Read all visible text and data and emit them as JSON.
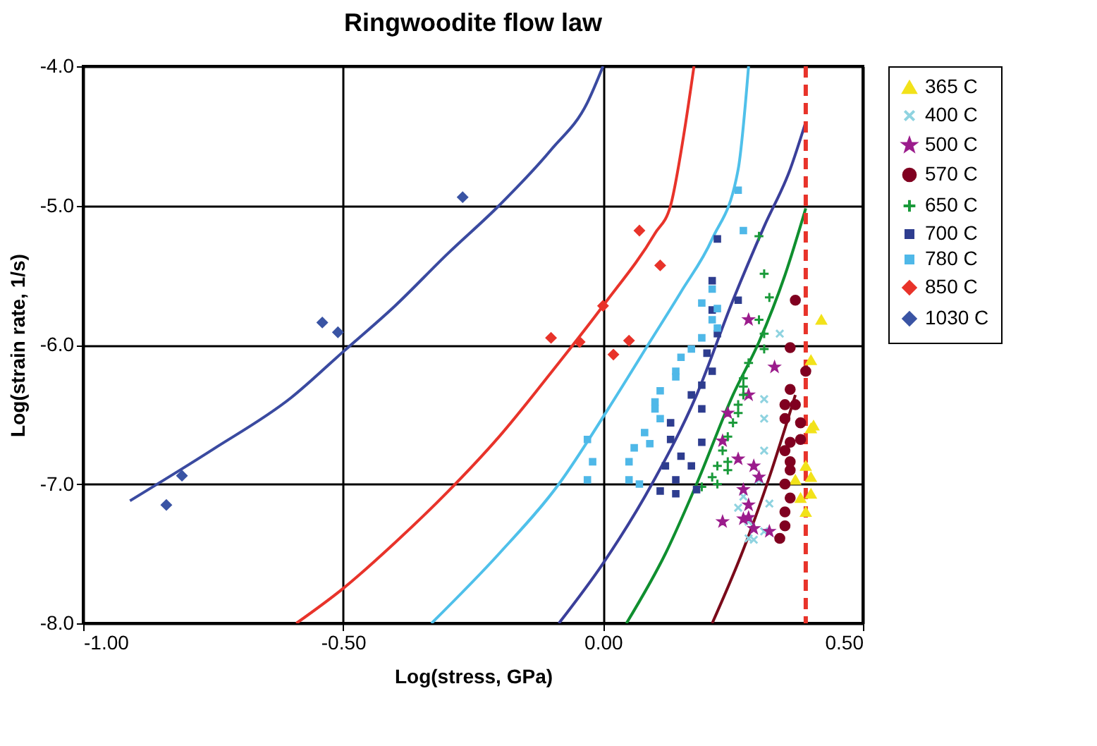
{
  "chart_data": {
    "type": "scatter",
    "title": "Ringwoodite flow law",
    "xlabel": "Log(stress, GPa)",
    "ylabel": "Log(strain rate, 1/s)",
    "xlim": [
      -1,
      0.5
    ],
    "xticks": [
      {
        "value": -1,
        "label": "-1.00"
      },
      {
        "value": -0.5,
        "label": "-0.50"
      },
      {
        "value": 0,
        "label": "0.00"
      },
      {
        "value": 0.5,
        "label": "0.50"
      }
    ],
    "ylim": [
      -8,
      -4
    ],
    "yticks": [
      {
        "value": -8,
        "label": "-8.0"
      },
      {
        "value": -7,
        "label": "-7.0"
      },
      {
        "value": -6,
        "label": "-6.0"
      },
      {
        "value": -5,
        "label": "-5.0"
      },
      {
        "value": -4,
        "label": "-4.0"
      }
    ],
    "grid": true,
    "legend": "right",
    "ref_lines": [
      {
        "axis": "x",
        "value": 0.39,
        "color": "#e8332a",
        "line_style": "dashed"
      }
    ],
    "series": [
      {
        "type": "line",
        "color": "#3a4aa0",
        "x": [
          -0.91,
          -0.75,
          -0.6,
          -0.5,
          -0.4,
          -0.3,
          -0.2,
          -0.1,
          -0.03,
          0.0
        ],
        "values": [
          -7.12,
          -6.75,
          -6.38,
          -6.05,
          -5.72,
          -5.35,
          -5.0,
          -4.6,
          -4.26,
          -4.0
        ]
      },
      {
        "type": "line",
        "color": "#e8332a",
        "x": [
          -0.59,
          -0.5,
          -0.4,
          -0.3,
          -0.2,
          -0.1,
          0.0,
          0.1,
          0.13,
          0.155,
          0.175
        ],
        "values": [
          -8.0,
          -7.75,
          -7.42,
          -7.06,
          -6.66,
          -6.2,
          -5.72,
          -5.2,
          -5.0,
          -4.5,
          -4.0
        ]
      },
      {
        "type": "line",
        "color": "#4fc0ea",
        "x": [
          -0.33,
          -0.2,
          -0.085,
          0.01,
          0.09,
          0.15,
          0.21,
          0.26,
          0.28
        ],
        "values": [
          -8.0,
          -7.5,
          -7.0,
          -6.46,
          -5.98,
          -5.62,
          -5.24,
          -4.74,
          -4.0
        ]
      },
      {
        "type": "line",
        "color": "#3a3f9a",
        "x": [
          -0.085,
          0.0,
          0.094,
          0.18,
          0.25,
          0.31,
          0.36,
          0.39
        ],
        "values": [
          -8.0,
          -7.57,
          -7.0,
          -6.36,
          -5.68,
          -5.15,
          -4.74,
          -4.4
        ]
      },
      {
        "type": "line",
        "color": "#0f8f2f",
        "x": [
          0.045,
          0.12,
          0.18,
          0.25,
          0.3,
          0.35,
          0.39
        ],
        "values": [
          -8.0,
          -7.5,
          -7.0,
          -6.36,
          -5.98,
          -5.5,
          -5.02
        ]
      },
      {
        "type": "line",
        "color": "#7a0a1a",
        "x": [
          0.21,
          0.27,
          0.32,
          0.37
        ],
        "values": [
          -8.0,
          -7.47,
          -6.95,
          -6.36
        ]
      },
      {
        "type": "scatter",
        "name": "365 C",
        "color": "#f2e21a",
        "marker": "triangle",
        "x": [
          0.42,
          0.4,
          0.405,
          0.4,
          0.39,
          0.4,
          0.39,
          0.37,
          0.38,
          0.4
        ],
        "values": [
          -5.82,
          -6.11,
          -6.58,
          -6.6,
          -6.87,
          -7.07,
          -7.2,
          -6.97,
          -7.1,
          -6.95
        ]
      },
      {
        "type": "scatter",
        "name": "400 C",
        "color": "#8fd3e0",
        "marker": "x",
        "x": [
          0.34,
          0.31,
          0.31,
          0.3,
          0.27,
          0.26,
          0.28,
          0.28,
          0.29,
          0.31,
          0.32,
          0.31
        ],
        "values": [
          -5.92,
          -6.53,
          -6.76,
          -6.97,
          -7.09,
          -7.17,
          -7.27,
          -7.39,
          -7.4,
          -7.34,
          -7.14,
          -6.39
        ]
      },
      {
        "type": "scatter",
        "name": "500 C",
        "color": "#9b1c8c",
        "marker": "star",
        "x": [
          0.28,
          0.33,
          0.28,
          0.24,
          0.23,
          0.26,
          0.29,
          0.3,
          0.23,
          0.28,
          0.27,
          0.29,
          0.32,
          0.28,
          0.27
        ],
        "values": [
          -5.82,
          -6.16,
          -6.36,
          -6.49,
          -6.69,
          -6.82,
          -6.87,
          -6.95,
          -7.27,
          -7.15,
          -7.25,
          -7.32,
          -7.34,
          -7.24,
          -7.04
        ]
      },
      {
        "type": "scatter",
        "name": "570 C",
        "color": "#800020",
        "marker": "circle",
        "x": [
          0.37,
          0.36,
          0.39,
          0.36,
          0.35,
          0.35,
          0.38,
          0.38,
          0.35,
          0.36,
          0.35,
          0.36,
          0.35,
          0.35,
          0.34,
          0.36,
          0.36,
          0.37
        ],
        "values": [
          -5.68,
          -6.02,
          -6.19,
          -6.32,
          -6.43,
          -6.53,
          -6.56,
          -6.68,
          -6.76,
          -6.9,
          -7.0,
          -7.1,
          -7.2,
          -7.3,
          -7.39,
          -6.7,
          -6.84,
          -6.43
        ]
      },
      {
        "type": "scatter",
        "name": "650 C",
        "color": "#1a9a3a",
        "marker": "cross",
        "x": [
          0.3,
          0.31,
          0.32,
          0.3,
          0.31,
          0.31,
          0.28,
          0.27,
          0.27,
          0.26,
          0.25,
          0.24,
          0.23,
          0.22,
          0.21,
          0.19,
          0.22,
          0.24,
          0.26,
          0.24,
          0.27
        ],
        "values": [
          -5.22,
          -5.49,
          -5.66,
          -5.82,
          -5.92,
          -6.03,
          -6.13,
          -6.24,
          -6.36,
          -6.43,
          -6.56,
          -6.66,
          -6.76,
          -6.87,
          -6.95,
          -7.02,
          -7.0,
          -6.9,
          -6.49,
          -6.84,
          -6.3
        ]
      },
      {
        "type": "scatter",
        "name": "700 C",
        "color": "#2e3d8f",
        "marker": "square",
        "x": [
          0.22,
          0.21,
          0.26,
          0.21,
          0.22,
          0.2,
          0.21,
          0.19,
          0.17,
          0.19,
          0.13,
          0.15,
          0.12,
          0.14,
          0.11,
          0.14,
          0.18,
          0.17,
          0.19,
          0.13
        ],
        "values": [
          -5.24,
          -5.54,
          -5.68,
          -5.75,
          -5.92,
          -6.06,
          -6.19,
          -6.29,
          -6.36,
          -6.46,
          -6.68,
          -6.8,
          -6.87,
          -6.97,
          -7.05,
          -7.07,
          -7.04,
          -6.87,
          -6.7,
          -6.56
        ]
      },
      {
        "type": "scatter",
        "name": "780 C",
        "color": "#4fb8e8",
        "marker": "square",
        "x": [
          0.26,
          0.27,
          0.21,
          0.19,
          0.22,
          0.21,
          0.22,
          0.19,
          0.17,
          0.15,
          0.14,
          0.14,
          0.11,
          0.1,
          0.1,
          0.11,
          0.08,
          0.09,
          0.06,
          0.05,
          0.05,
          0.07,
          -0.03,
          -0.02,
          -0.03
        ],
        "values": [
          -4.89,
          -5.18,
          -5.6,
          -5.7,
          -5.74,
          -5.82,
          -5.88,
          -5.95,
          -6.03,
          -6.09,
          -6.19,
          -6.23,
          -6.33,
          -6.41,
          -6.46,
          -6.53,
          -6.63,
          -6.71,
          -6.74,
          -6.84,
          -6.97,
          -7.0,
          -6.68,
          -6.84,
          -6.97
        ]
      },
      {
        "type": "scatter",
        "name": "850 C",
        "color": "#e8332a",
        "marker": "diamond",
        "x": [
          -0.1,
          -0.045,
          0.0,
          0.02,
          0.05,
          0.07,
          0.11
        ],
        "values": [
          -5.95,
          -5.98,
          -5.72,
          -6.07,
          -5.97,
          -5.18,
          -5.43
        ]
      },
      {
        "type": "scatter",
        "name": "1030 C",
        "color": "#3a54a4",
        "marker": "diamond",
        "x": [
          -0.84,
          -0.81,
          -0.54,
          -0.51,
          -0.27
        ],
        "values": [
          -7.15,
          -6.94,
          -5.84,
          -5.91,
          -4.94
        ]
      }
    ]
  }
}
